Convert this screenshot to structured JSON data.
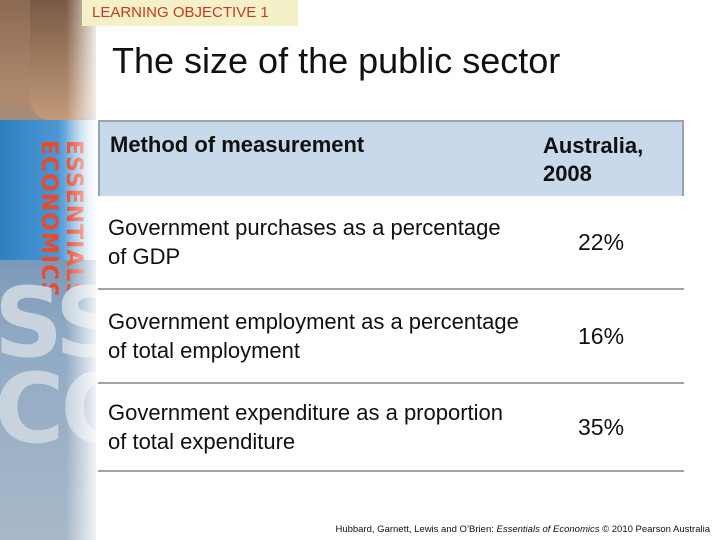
{
  "objective": {
    "label": "LEARNING OBJECTIVE 1"
  },
  "title": "The size of the public sector",
  "table": {
    "headers": {
      "method": "Method of measurement",
      "value": "Australia, 2008"
    },
    "rows": [
      {
        "method": "Government purchases as a percentage of GDP",
        "value": "22%"
      },
      {
        "method": "Government employment as a percentage of total employment",
        "value": "16%"
      },
      {
        "method": "Government expenditure as a proportion of total expenditure",
        "value": "35%"
      }
    ]
  },
  "footer": {
    "authors": "Hubbard, Garnett, Lewis and O’Brien: ",
    "book": "Essentials of Economics",
    "rest": " © 2010 Pearson Australia"
  },
  "decor": {
    "big_letters": "SS\nCO",
    "small_letters": "ESSENTIALS ECONOMICS"
  }
}
